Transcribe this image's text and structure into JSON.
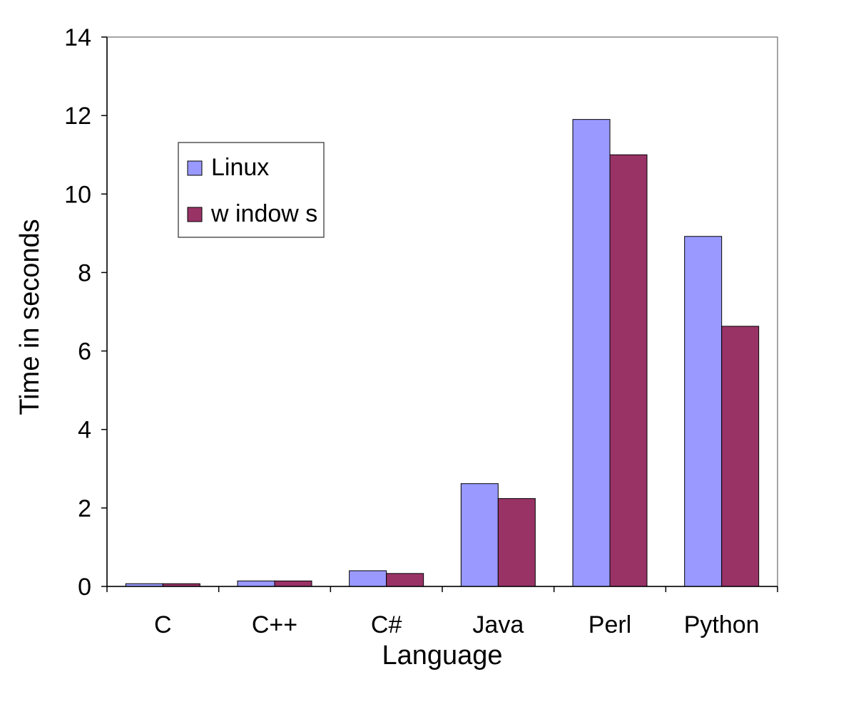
{
  "chart_data": {
    "type": "bar",
    "categories": [
      "C",
      "C++",
      "C#",
      "Java",
      "Perl",
      "Python"
    ],
    "series": [
      {
        "name": "Linux",
        "color": "#9999FF",
        "values": [
          0.07,
          0.14,
          0.4,
          2.62,
          11.9,
          8.92
        ]
      },
      {
        "name": "w indow s",
        "color": "#993366",
        "values": [
          0.07,
          0.14,
          0.33,
          2.24,
          11.0,
          6.63
        ]
      }
    ],
    "title": "",
    "xlabel": "Language",
    "ylabel": "Time in seconds",
    "ylim": [
      0,
      14
    ],
    "yticks": [
      0,
      2,
      4,
      6,
      8,
      10,
      12,
      14
    ],
    "grid": false,
    "legend_position": "top-left"
  }
}
